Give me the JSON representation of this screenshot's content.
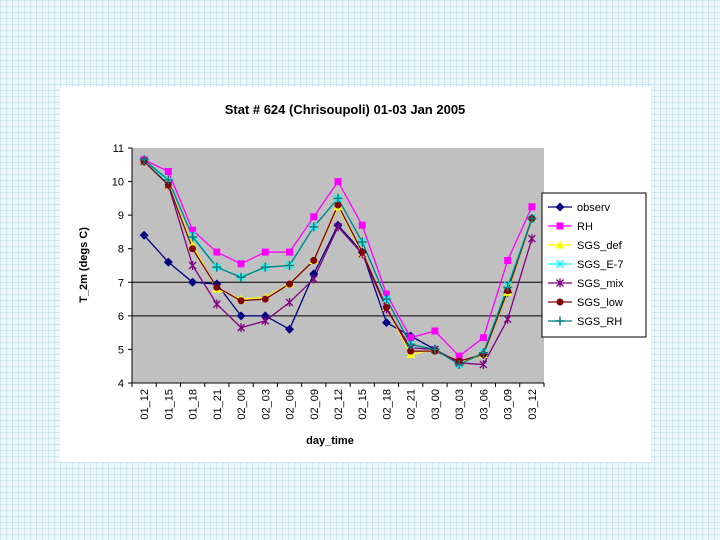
{
  "chart_data": {
    "type": "line",
    "title": "Stat # 624 (Chrisoupoli) 01-03 Jan 2005",
    "xlabel": "day_time",
    "ylabel": "T_2m (degs C)",
    "ylim": [
      4,
      11
    ],
    "yticks": [
      4,
      5,
      6,
      7,
      8,
      9,
      10,
      11
    ],
    "reference_lines": [
      6,
      7
    ],
    "categories": [
      "01_12",
      "01_15",
      "01_18",
      "01_21",
      "02_00",
      "02_03",
      "02_06",
      "02_09",
      "02_12",
      "02_15",
      "02_18",
      "02_21",
      "03_00",
      "03_03",
      "03_06",
      "03_09",
      "03_12"
    ],
    "legend_position": "right",
    "series": [
      {
        "name": "observ",
        "color": "#000080",
        "marker": "diamond",
        "values": [
          8.4,
          7.6,
          7.0,
          6.95,
          6.0,
          6.0,
          5.6,
          7.25,
          8.7,
          7.9,
          5.8,
          5.4,
          5.0,
          4.6,
          4.85,
          6.7,
          8.9
        ]
      },
      {
        "name": "RH",
        "color": "#ff00ff",
        "marker": "square",
        "values": [
          10.65,
          10.3,
          8.55,
          7.9,
          7.55,
          7.9,
          7.9,
          8.95,
          10.0,
          8.7,
          6.65,
          5.35,
          5.55,
          4.8,
          5.35,
          7.65,
          9.25
        ]
      },
      {
        "name": "SGS_def",
        "color": "#ffff00",
        "marker": "triangle",
        "values": [
          10.6,
          9.9,
          8.1,
          6.8,
          6.5,
          6.55,
          6.95,
          7.65,
          9.25,
          7.85,
          6.25,
          4.85,
          5.0,
          4.6,
          4.85,
          6.7,
          8.9
        ]
      },
      {
        "name": "SGS_E-7",
        "color": "#00ffff",
        "marker": "x",
        "values": [
          10.6,
          10.0,
          8.4,
          7.45,
          7.15,
          7.45,
          7.5,
          8.65,
          9.5,
          8.2,
          6.5,
          5.15,
          5.0,
          4.55,
          4.9,
          6.9,
          8.9
        ]
      },
      {
        "name": "SGS_mix",
        "color": "#800080",
        "marker": "star",
        "values": [
          10.6,
          9.9,
          7.5,
          6.35,
          5.65,
          5.85,
          6.4,
          7.1,
          8.65,
          7.85,
          6.2,
          5.05,
          5.0,
          4.6,
          4.55,
          5.9,
          8.3
        ]
      },
      {
        "name": "SGS_low",
        "color": "#800000",
        "marker": "circle",
        "values": [
          10.6,
          9.9,
          8.0,
          6.85,
          6.45,
          6.5,
          6.95,
          7.65,
          9.3,
          7.9,
          6.25,
          4.95,
          4.95,
          4.65,
          4.85,
          6.75,
          8.9
        ]
      },
      {
        "name": "SGS_RH",
        "color": "#008080",
        "marker": "plus",
        "values": [
          10.65,
          10.05,
          8.35,
          7.45,
          7.15,
          7.45,
          7.5,
          8.65,
          9.5,
          8.2,
          6.5,
          5.15,
          5.0,
          4.55,
          4.9,
          6.85,
          8.9
        ]
      }
    ]
  }
}
